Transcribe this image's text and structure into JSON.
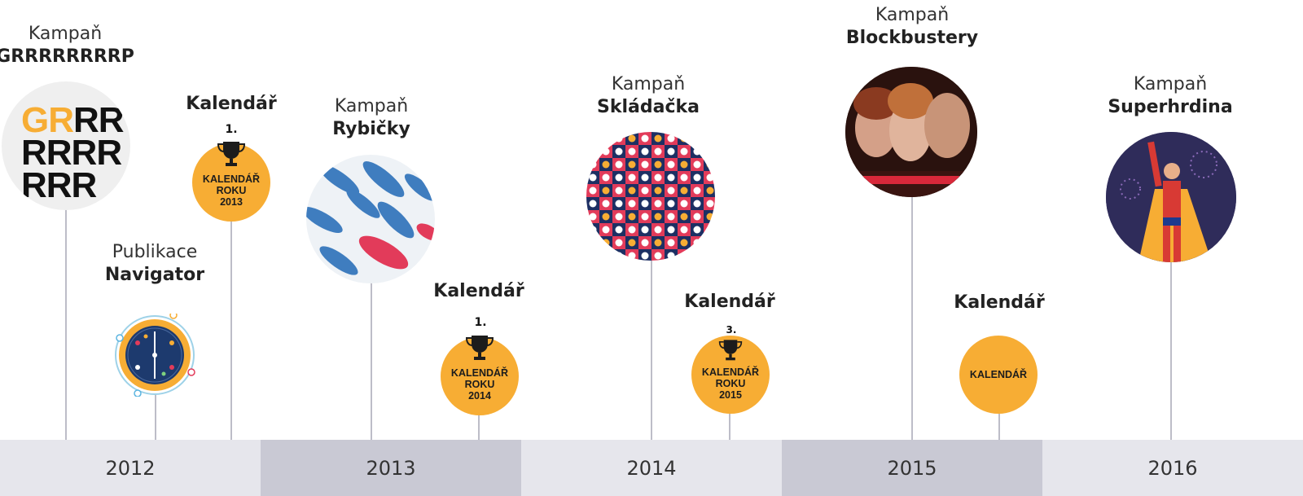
{
  "timeline": {
    "years": [
      "2012",
      "2013",
      "2014",
      "2015",
      "2016"
    ],
    "items": [
      {
        "pre": "Kampaň",
        "name": "GRRRRRRRRP",
        "image": "grrr-text-art"
      },
      {
        "pre": "Publikace",
        "name": "Navigator",
        "image": "navigator-compass"
      },
      {
        "name": "Kalendář",
        "rank": "1.",
        "badge_line1": "KALENDÁŘ",
        "badge_line2": "ROKU",
        "badge_line3": "2013"
      },
      {
        "pre": "Kampaň",
        "name": "Rybičky",
        "image": "fish-pattern"
      },
      {
        "name": "Kalendář",
        "rank": "1.",
        "badge_line1": "KALENDÁŘ",
        "badge_line2": "ROKU",
        "badge_line3": "2014"
      },
      {
        "pre": "Kampaň",
        "name": "Skládačka",
        "image": "puzzle-pattern"
      },
      {
        "name": "Kalendář",
        "rank": "3.",
        "badge_line1": "KALENDÁŘ",
        "badge_line2": "ROKU",
        "badge_line3": "2015"
      },
      {
        "pre": "Kampaň",
        "name": "Blockbustery",
        "image": "movie-poster"
      },
      {
        "name": "Kalendář",
        "badge_line1": "KALENDÁŘ"
      },
      {
        "pre": "Kampaň",
        "name": "Superhrdina",
        "image": "superhero-illustration"
      }
    ],
    "grr_art": {
      "line1_accent": "GR",
      "line1_rest": "RR",
      "line2": "RRRR",
      "line3": "RRR"
    }
  },
  "colors": {
    "accent": "#f7ad34",
    "stem": "#bdbdc8",
    "year_light": "#e6e6ec",
    "year_dark": "#c9c9d4"
  }
}
